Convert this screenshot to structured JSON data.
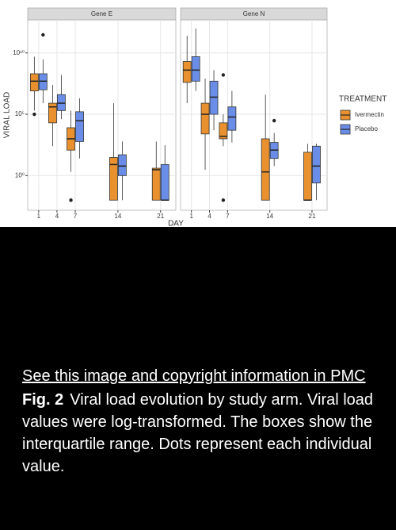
{
  "chart_data": {
    "type": "box",
    "y_label": "VIRAL LOAD",
    "x_label": "DAY",
    "legend_title": "TREATMENT",
    "log_y": true,
    "grid": true,
    "facets": [
      "Gene E",
      "Gene N"
    ],
    "x": [
      1,
      4,
      7,
      14,
      21
    ],
    "xlim": [
      -0.8,
      23.5
    ],
    "xticks": [
      1,
      4,
      7,
      14,
      21
    ],
    "ylim": [
      0.0015,
      5000000000000.0
    ],
    "yticks": [
      {
        "value": 1,
        "label": "10⁰"
      },
      {
        "value": 100000,
        "label": "10⁵"
      },
      {
        "value": 10000000000,
        "label": "10¹⁰"
      }
    ],
    "series": [
      {
        "name": "Ivermectin",
        "color": "#e8912e",
        "facets": [
          {
            "low": [
              200000.0,
              250,
              2,
              0.01,
              0.01
            ],
            "q1": [
              8000000.0,
              20000.0,
              120,
              0.01,
              0.01
            ],
            "median": [
              50000000.0,
              400000.0,
              1000,
              8,
              3
            ],
            "q3": [
              200000000.0,
              800000.0,
              8000,
              30,
              4
            ],
            "high": [
              5000000000.0,
              25000000.0,
              200000.0,
              800000.0,
              600
            ],
            "outliers": [
              [
                100000.0
              ],
              [],
              [
                0.01
              ],
              [],
              []
            ]
          },
          {
            "low": [
              800000.0,
              3,
              250,
              0.01,
              0.01
            ],
            "q1": [
              40000000.0,
              2500,
              1000,
              0.01,
              0.01
            ],
            "median": [
              400000000.0,
              100000.0,
              1600,
              2,
              0.01
            ],
            "q3": [
              2000000000.0,
              800000.0,
              20000.0,
              1000,
              80
            ],
            "high": [
              250000000000.0,
              80000000.0,
              100000.0,
              4000000.0,
              400
            ],
            "outliers": [
              [],
              [],
              [
                0.01,
                160000000.0
              ],
              [],
              []
            ]
          }
        ]
      },
      {
        "name": "Placebo",
        "color": "#6a8ee8",
        "facets": [
          {
            "low": [
              800000.0,
              40000.0,
              25,
              0.01,
              0.01
            ],
            "q1": [
              10000000.0,
              200000.0,
              600,
              1,
              0.01
            ],
            "median": [
              50000000.0,
              800000.0,
              30000.0,
              6,
              0.01
            ],
            "q3": [
              200000000.0,
              4000000.0,
              160000.0,
              50,
              8
            ],
            "high": [
              3000000000.0,
              160000000.0,
              2000000.0,
              600,
              300
            ],
            "outliers": [
              [
                300000000000.0
              ],
              [],
              [],
              [],
              []
            ]
          },
          {
            "low": [
              8000000.0,
              5000,
              500,
              6,
              0.01
            ],
            "q1": [
              50000000.0,
              100000.0,
              5000,
              25,
              0.25
            ],
            "median": [
              400000000.0,
              2500000.0,
              60000.0,
              120,
              6
            ],
            "q3": [
              5000000000.0,
              50000000.0,
              400000.0,
              500,
              250
            ],
            "high": [
              1000000000000.0,
              400000000.0,
              8000000.0,
              3000,
              400
            ],
            "outliers": [
              [],
              [],
              [],
              [
                30000.0
              ],
              []
            ]
          }
        ]
      }
    ]
  },
  "caption": {
    "link": "See this image and copyright information in PMC",
    "label": "Fig. 2",
    "text": "Viral load evolution by study arm. Viral load values were log-transformed. The boxes show the interquartile range. Dots represent each individual value."
  }
}
